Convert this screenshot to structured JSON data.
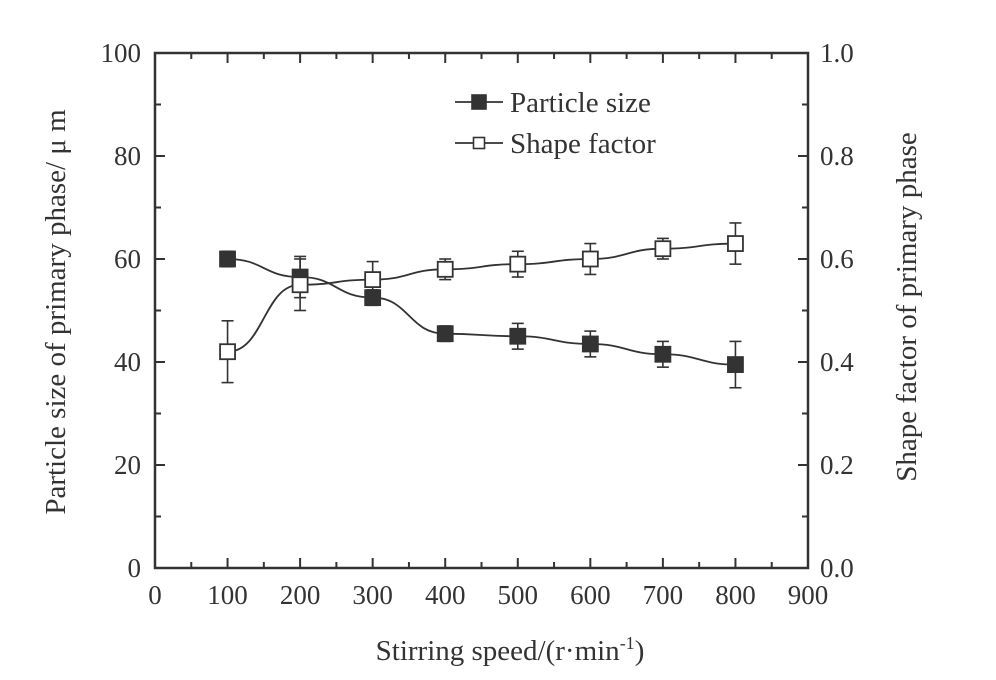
{
  "chart_data": {
    "type": "line",
    "title": "",
    "xlabel": "Stirring speed/(r·min",
    "xlabel_sup": "-1",
    "xlabel_close": ")",
    "ylabel": "Particle size of primary phase/ μ m",
    "y2label": "Shape factor of primary phase",
    "xlim": [
      0,
      900
    ],
    "ylim": [
      0,
      100
    ],
    "y2lim": [
      0.0,
      1.0
    ],
    "x_ticks": [
      0,
      100,
      200,
      300,
      400,
      500,
      600,
      700,
      800,
      900
    ],
    "x_tick_labels": [
      "0",
      "100",
      "200",
      "300",
      "400",
      "500",
      "600",
      "700",
      "800",
      "900"
    ],
    "y_ticks": [
      0,
      20,
      40,
      60,
      80,
      100
    ],
    "y_tick_labels": [
      "0",
      "20",
      "40",
      "60",
      "80",
      "100"
    ],
    "y2_ticks": [
      0.0,
      0.2,
      0.4,
      0.6,
      0.8,
      1.0
    ],
    "y2_tick_labels": [
      "0.0",
      "0.2",
      "0.4",
      "0.6",
      "0.8",
      "1.0"
    ],
    "grid": false,
    "legend_position": "top-right",
    "x": [
      100,
      200,
      300,
      400,
      500,
      600,
      700,
      800
    ],
    "series": [
      {
        "name": "Particle size",
        "axis": "left",
        "marker": "filled-square",
        "values": [
          60,
          56.5,
          52.5,
          45.5,
          45,
          43.5,
          41.5,
          39.5
        ],
        "errors": [
          1.5,
          4,
          1.5,
          1.5,
          2.5,
          2.5,
          2.5,
          4.5
        ],
        "color": "#333333"
      },
      {
        "name": "Shape factor",
        "axis": "right",
        "marker": "open-square",
        "values": [
          0.42,
          0.55,
          0.56,
          0.58,
          0.59,
          0.6,
          0.62,
          0.63
        ],
        "errors": [
          0.06,
          0.05,
          0.035,
          0.02,
          0.025,
          0.03,
          0.02,
          0.04
        ],
        "color": "#333333"
      }
    ]
  }
}
